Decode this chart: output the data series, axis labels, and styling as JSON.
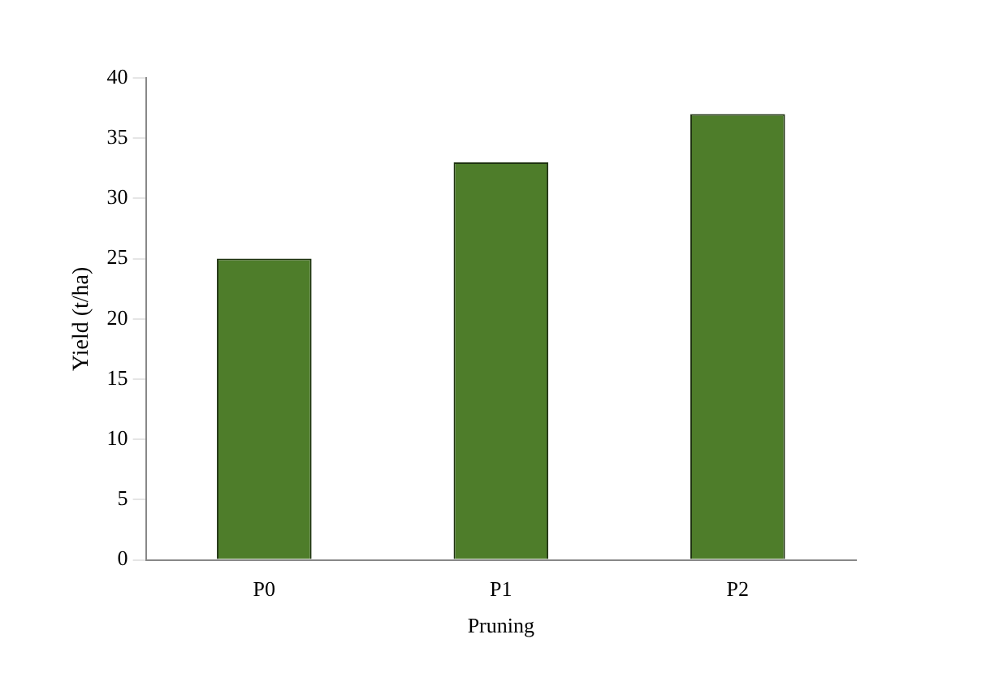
{
  "chart_data": {
    "type": "bar",
    "xlabel": "Pruning",
    "ylabel": "Yield (t/ha)",
    "categories": [
      "P0",
      "P1",
      "P2"
    ],
    "values": [
      25,
      33,
      37
    ],
    "color": "#4e7d2a",
    "ylim": [
      0,
      40
    ],
    "yticks": [
      0,
      5,
      10,
      15,
      20,
      25,
      30,
      35,
      40
    ],
    "grid": false,
    "legend": false
  }
}
